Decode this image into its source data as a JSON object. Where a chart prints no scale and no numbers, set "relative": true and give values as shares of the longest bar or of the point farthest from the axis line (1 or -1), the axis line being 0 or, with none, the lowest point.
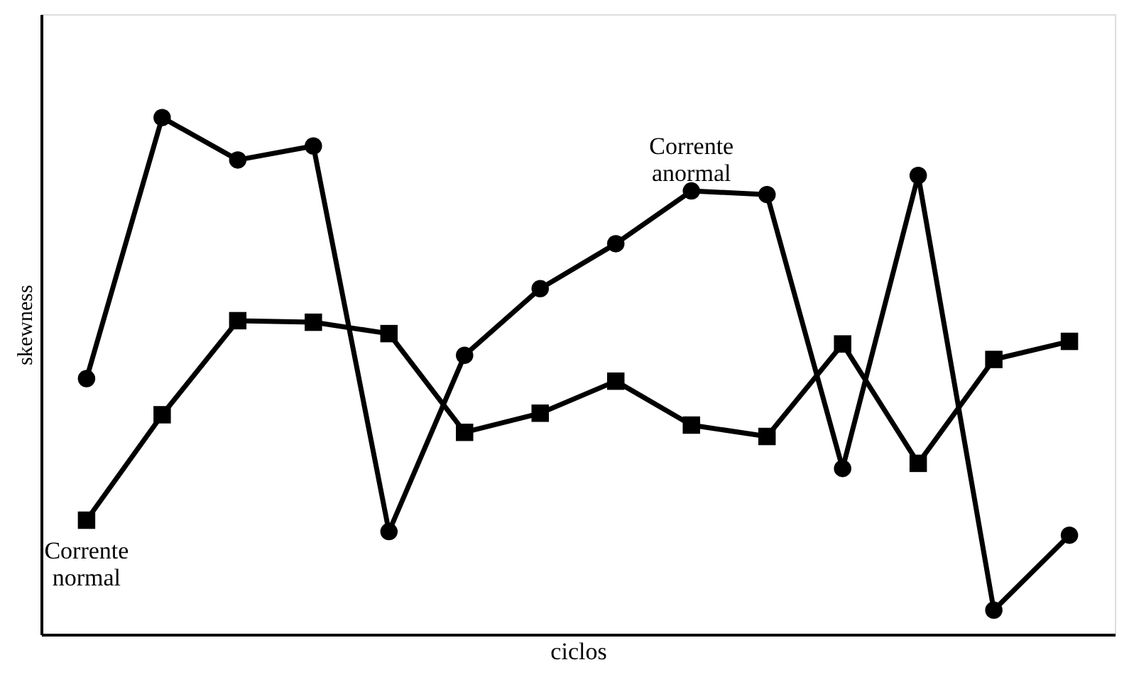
{
  "chart_data": {
    "type": "line",
    "relative": true,
    "xlabel": "ciclos",
    "ylabel": "skewness",
    "legend": false,
    "grid": false,
    "tick_labels": false,
    "categories": [
      null,
      null,
      null,
      null,
      null,
      null,
      null,
      null,
      null,
      null,
      null,
      null,
      null,
      null
    ],
    "series": [
      {
        "name": "Corrente normal",
        "color": "#000000",
        "marker": "square",
        "values": [
          0.221,
          0.425,
          0.607,
          0.604,
          0.582,
          0.391,
          0.428,
          0.49,
          0.405,
          0.383,
          0.562,
          0.331,
          0.532,
          0.567
        ]
      },
      {
        "name": "Corrente anormal",
        "color": "#000000",
        "marker": "circle",
        "values": [
          0.495,
          1,
          0.918,
          0.945,
          0.199,
          0.54,
          0.669,
          0.756,
          0.858,
          0.851,
          0.321,
          0.888,
          0.047,
          0.192
        ]
      }
    ],
    "line_style": "solid"
  }
}
